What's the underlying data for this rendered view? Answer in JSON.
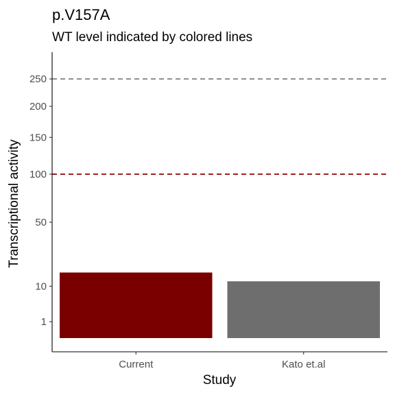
{
  "title": "p.V157A",
  "subtitle": "WT level indicated by colored lines",
  "chart_data": {
    "type": "bar",
    "xlabel": "Study",
    "ylabel": "Transcriptional activity",
    "categories": [
      "Current",
      "Kato et.al"
    ],
    "values": [
      16,
      12
    ],
    "bar_colors": [
      "#7a0000",
      "#6e6e6e"
    ],
    "y_scale": "sqrt",
    "ylim": [
      0,
      330
    ],
    "y_ticks": [
      1,
      10,
      50,
      100,
      150,
      200,
      250
    ],
    "y_tick_labels": [
      "1",
      "10",
      "50",
      "100",
      "150",
      "200",
      "250"
    ],
    "reference_lines": [
      {
        "y": 100,
        "color": "#8b0000",
        "style": "dashed"
      },
      {
        "y": 250,
        "color": "#7f7f7f",
        "style": "dashed"
      }
    ],
    "grid": false,
    "legend": "none"
  }
}
